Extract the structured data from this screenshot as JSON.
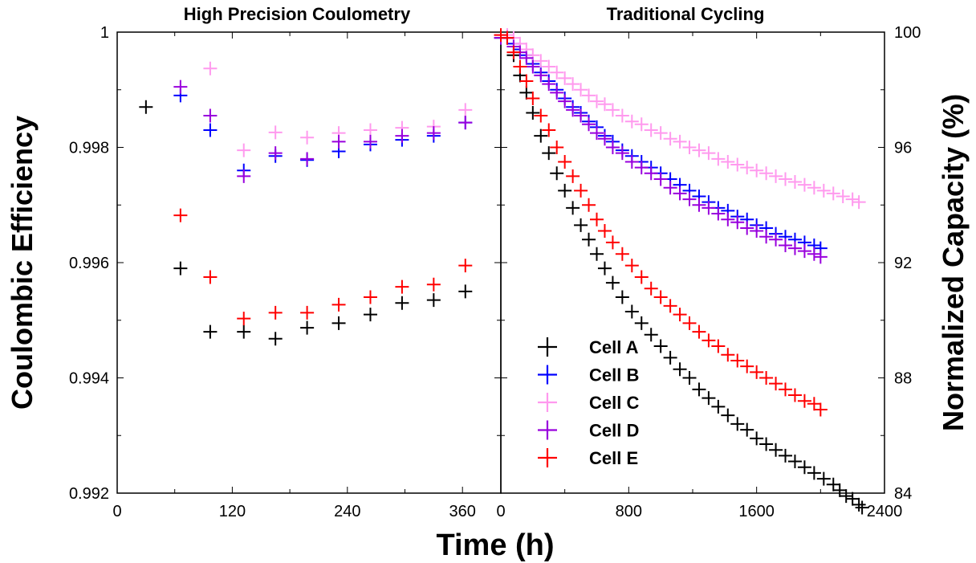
{
  "chart_data": [
    {
      "type": "scatter",
      "title": "High Precision Coulometry",
      "xlabel": "Time (h)",
      "ylabel": "Coulombic Efficiency",
      "xlim": [
        0,
        400
      ],
      "ylim": [
        0.992,
        1.0
      ],
      "xticks": [
        "0",
        "120",
        "240",
        "360"
      ],
      "yticks": [
        "0.992",
        "0.994",
        "0.996",
        "0.998",
        "1"
      ],
      "grid": false,
      "series": [
        {
          "name": "Cell A",
          "color": "#000000",
          "points": [
            [
              30,
              0.9987
            ],
            [
              66,
              0.9959
            ],
            [
              97,
              0.9948
            ],
            [
              132,
              0.9948
            ],
            [
              165,
              0.99468
            ],
            [
              198,
              0.99487
            ],
            [
              231,
              0.99495
            ],
            [
              264,
              0.9951
            ],
            [
              297,
              0.9953
            ],
            [
              330,
              0.99535
            ],
            [
              363,
              0.9955
            ]
          ]
        },
        {
          "name": "Cell B",
          "color": "#0000ff",
          "points": [
            [
              66,
              0.9989
            ],
            [
              97,
              0.9983
            ],
            [
              132,
              0.9976
            ],
            [
              165,
              0.99785
            ],
            [
              198,
              0.99778
            ],
            [
              231,
              0.99793
            ],
            [
              264,
              0.99805
            ],
            [
              297,
              0.99813
            ],
            [
              330,
              0.9982
            ],
            [
              363,
              0.99843
            ]
          ]
        },
        {
          "name": "Cell C",
          "color": "#ff99ee",
          "points": [
            [
              97,
              0.99937
            ],
            [
              132,
              0.99795
            ],
            [
              165,
              0.99826
            ],
            [
              198,
              0.99817
            ],
            [
              231,
              0.99825
            ],
            [
              264,
              0.9983
            ],
            [
              297,
              0.99834
            ],
            [
              330,
              0.99836
            ],
            [
              363,
              0.99865
            ]
          ]
        },
        {
          "name": "Cell D",
          "color": "#9900dd",
          "points": [
            [
              66,
              0.99905
            ],
            [
              97,
              0.99855
            ],
            [
              132,
              0.9975
            ],
            [
              165,
              0.9979
            ],
            [
              198,
              0.9978
            ],
            [
              231,
              0.9981
            ],
            [
              264,
              0.9981
            ],
            [
              297,
              0.9982
            ],
            [
              330,
              0.99825
            ],
            [
              363,
              0.99843
            ]
          ]
        },
        {
          "name": "Cell E",
          "color": "#ff0000",
          "points": [
            [
              66,
              0.99682
            ],
            [
              97,
              0.99575
            ],
            [
              132,
              0.99503
            ],
            [
              165,
              0.99513
            ],
            [
              198,
              0.99513
            ],
            [
              231,
              0.99527
            ],
            [
              264,
              0.9954
            ],
            [
              297,
              0.99558
            ],
            [
              330,
              0.99562
            ],
            [
              363,
              0.99595
            ]
          ]
        }
      ]
    },
    {
      "type": "scatter",
      "title": "Traditional Cycling",
      "xlabel": "Time (h)",
      "ylabel": "Normalized Capacity (%)",
      "xlim": [
        0,
        2400
      ],
      "ylim": [
        84,
        100
      ],
      "xticks": [
        "0",
        "800",
        "1600",
        "2400"
      ],
      "yticks": [
        "84",
        "88",
        "92",
        "96",
        "100"
      ],
      "grid": false,
      "legend": {
        "position": "bottom-left"
      },
      "series": [
        {
          "name": "Cell A",
          "color": "#000000",
          "points": [
            [
              0,
              99.8
            ],
            [
              40,
              99.8
            ],
            [
              80,
              99.2
            ],
            [
              120,
              98.5
            ],
            [
              160,
              97.9
            ],
            [
              200,
              97.2
            ],
            [
              250,
              96.4
            ],
            [
              300,
              95.8
            ],
            [
              350,
              95.1
            ],
            [
              400,
              94.5
            ],
            [
              450,
              93.9
            ],
            [
              500,
              93.3
            ],
            [
              550,
              92.8
            ],
            [
              600,
              92.3
            ],
            [
              650,
              91.8
            ],
            [
              700,
              91.3
            ],
            [
              760,
              90.8
            ],
            [
              820,
              90.3
            ],
            [
              880,
              89.9
            ],
            [
              940,
              89.5
            ],
            [
              1000,
              89.1
            ],
            [
              1060,
              88.7
            ],
            [
              1120,
              88.3
            ],
            [
              1180,
              88.0
            ],
            [
              1240,
              87.6
            ],
            [
              1300,
              87.3
            ],
            [
              1360,
              87.0
            ],
            [
              1420,
              86.7
            ],
            [
              1480,
              86.4
            ],
            [
              1540,
              86.2
            ],
            [
              1600,
              85.9
            ],
            [
              1660,
              85.7
            ],
            [
              1720,
              85.5
            ],
            [
              1780,
              85.3
            ],
            [
              1840,
              85.1
            ],
            [
              1900,
              84.9
            ],
            [
              1960,
              84.7
            ],
            [
              2020,
              84.5
            ],
            [
              2080,
              84.3
            ],
            [
              2120,
              84.1
            ],
            [
              2160,
              83.9
            ],
            [
              2200,
              83.8
            ],
            [
              2240,
              83.6
            ],
            [
              2260,
              83.5
            ]
          ]
        },
        {
          "name": "Cell B",
          "color": "#0000ff",
          "points": [
            [
              0,
              99.8
            ],
            [
              40,
              99.8
            ],
            [
              80,
              99.6
            ],
            [
              120,
              99.4
            ],
            [
              160,
              99.2
            ],
            [
              200,
              98.9
            ],
            [
              250,
              98.6
            ],
            [
              300,
              98.3
            ],
            [
              350,
              98.0
            ],
            [
              400,
              97.7
            ],
            [
              450,
              97.4
            ],
            [
              500,
              97.2
            ],
            [
              550,
              96.9
            ],
            [
              600,
              96.7
            ],
            [
              650,
              96.4
            ],
            [
              700,
              96.2
            ],
            [
              760,
              95.9
            ],
            [
              820,
              95.7
            ],
            [
              880,
              95.5
            ],
            [
              940,
              95.3
            ],
            [
              1000,
              95.1
            ],
            [
              1060,
              94.9
            ],
            [
              1120,
              94.7
            ],
            [
              1180,
              94.5
            ],
            [
              1240,
              94.3
            ],
            [
              1300,
              94.1
            ],
            [
              1360,
              93.9
            ],
            [
              1420,
              93.8
            ],
            [
              1480,
              93.6
            ],
            [
              1540,
              93.5
            ],
            [
              1600,
              93.3
            ],
            [
              1660,
              93.2
            ],
            [
              1720,
              93.0
            ],
            [
              1780,
              92.9
            ],
            [
              1840,
              92.8
            ],
            [
              1900,
              92.7
            ],
            [
              1960,
              92.6
            ],
            [
              2000,
              92.5
            ]
          ]
        },
        {
          "name": "Cell C",
          "color": "#ff99ee",
          "points": [
            [
              0,
              99.9
            ],
            [
              40,
              99.9
            ],
            [
              80,
              99.8
            ],
            [
              120,
              99.6
            ],
            [
              160,
              99.4
            ],
            [
              200,
              99.2
            ],
            [
              250,
              99.0
            ],
            [
              300,
              98.8
            ],
            [
              350,
              98.6
            ],
            [
              400,
              98.4
            ],
            [
              450,
              98.2
            ],
            [
              500,
              98.0
            ],
            [
              550,
              97.8
            ],
            [
              600,
              97.6
            ],
            [
              650,
              97.5
            ],
            [
              700,
              97.3
            ],
            [
              760,
              97.1
            ],
            [
              820,
              96.9
            ],
            [
              880,
              96.8
            ],
            [
              940,
              96.6
            ],
            [
              1000,
              96.5
            ],
            [
              1060,
              96.3
            ],
            [
              1120,
              96.2
            ],
            [
              1180,
              96.0
            ],
            [
              1240,
              95.9
            ],
            [
              1300,
              95.8
            ],
            [
              1360,
              95.6
            ],
            [
              1420,
              95.5
            ],
            [
              1480,
              95.4
            ],
            [
              1540,
              95.3
            ],
            [
              1600,
              95.2
            ],
            [
              1660,
              95.1
            ],
            [
              1720,
              95.0
            ],
            [
              1780,
              94.9
            ],
            [
              1840,
              94.8
            ],
            [
              1900,
              94.7
            ],
            [
              1960,
              94.6
            ],
            [
              2020,
              94.5
            ],
            [
              2080,
              94.4
            ],
            [
              2140,
              94.3
            ],
            [
              2200,
              94.2
            ],
            [
              2240,
              94.1
            ]
          ]
        },
        {
          "name": "Cell D",
          "color": "#9900dd",
          "points": [
            [
              0,
              99.8
            ],
            [
              40,
              99.8
            ],
            [
              80,
              99.5
            ],
            [
              120,
              99.3
            ],
            [
              160,
              99.1
            ],
            [
              200,
              98.8
            ],
            [
              250,
              98.5
            ],
            [
              300,
              98.2
            ],
            [
              350,
              97.9
            ],
            [
              400,
              97.6
            ],
            [
              450,
              97.3
            ],
            [
              500,
              97.1
            ],
            [
              550,
              96.8
            ],
            [
              600,
              96.5
            ],
            [
              650,
              96.3
            ],
            [
              700,
              96.0
            ],
            [
              760,
              95.8
            ],
            [
              820,
              95.5
            ],
            [
              880,
              95.3
            ],
            [
              940,
              95.1
            ],
            [
              1000,
              94.9
            ],
            [
              1060,
              94.6
            ],
            [
              1120,
              94.4
            ],
            [
              1180,
              94.2
            ],
            [
              1240,
              94.0
            ],
            [
              1300,
              93.9
            ],
            [
              1360,
              93.7
            ],
            [
              1420,
              93.5
            ],
            [
              1480,
              93.4
            ],
            [
              1540,
              93.2
            ],
            [
              1600,
              93.1
            ],
            [
              1660,
              92.9
            ],
            [
              1720,
              92.8
            ],
            [
              1780,
              92.6
            ],
            [
              1840,
              92.5
            ],
            [
              1900,
              92.4
            ],
            [
              1960,
              92.3
            ],
            [
              2000,
              92.2
            ]
          ]
        },
        {
          "name": "Cell E",
          "color": "#ff0000",
          "points": [
            [
              0,
              99.9
            ],
            [
              40,
              99.8
            ],
            [
              80,
              99.3
            ],
            [
              120,
              98.8
            ],
            [
              160,
              98.3
            ],
            [
              200,
              97.7
            ],
            [
              250,
              97.1
            ],
            [
              300,
              96.6
            ],
            [
              350,
              96.0
            ],
            [
              400,
              95.5
            ],
            [
              450,
              95.0
            ],
            [
              500,
              94.5
            ],
            [
              550,
              94.0
            ],
            [
              600,
              93.5
            ],
            [
              650,
              93.1
            ],
            [
              700,
              92.7
            ],
            [
              760,
              92.3
            ],
            [
              820,
              91.9
            ],
            [
              880,
              91.5
            ],
            [
              940,
              91.1
            ],
            [
              1000,
              90.8
            ],
            [
              1060,
              90.5
            ],
            [
              1120,
              90.2
            ],
            [
              1180,
              89.9
            ],
            [
              1240,
              89.6
            ],
            [
              1300,
              89.3
            ],
            [
              1360,
              89.1
            ],
            [
              1420,
              88.8
            ],
            [
              1480,
              88.6
            ],
            [
              1540,
              88.4
            ],
            [
              1600,
              88.2
            ],
            [
              1660,
              88.0
            ],
            [
              1720,
              87.8
            ],
            [
              1780,
              87.6
            ],
            [
              1840,
              87.4
            ],
            [
              1900,
              87.2
            ],
            [
              1960,
              87.1
            ],
            [
              2000,
              86.9
            ]
          ]
        }
      ]
    }
  ]
}
